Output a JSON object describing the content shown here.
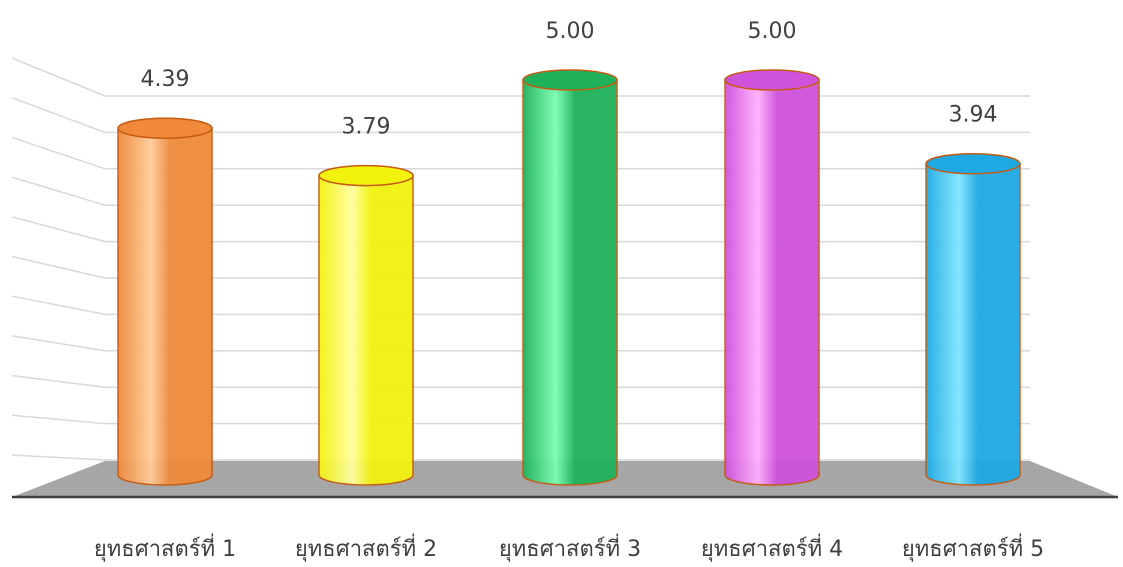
{
  "chart_data": {
    "type": "bar",
    "style": "3d-cylinder",
    "categories": [
      "ยุทธศาสตร์ที่ 1",
      "ยุทธศาสตร์ที่ 2",
      "ยุทธศาสตร์ที่ 3",
      "ยุทธศาสตร์ที่ 4",
      "ยุทธศาสตร์ที่ 5"
    ],
    "values": [
      4.39,
      3.79,
      5.0,
      5.0,
      3.94
    ],
    "value_labels": [
      "4.39",
      "3.79",
      "5.00",
      "5.00",
      "3.94"
    ],
    "title": "",
    "xlabel": "",
    "ylabel": "",
    "ylim": [
      0,
      5
    ],
    "grid": true,
    "legend": "none",
    "floor_color": "#a6a6a6",
    "edge_color": "#c55a11",
    "bar_colors": [
      "#ef8a3b",
      "#f2f20f",
      "#1fb25a",
      "#cf52db",
      "#1ea9e3"
    ],
    "bar_highlight_colors": [
      "#ffcc9a",
      "#ffffa0",
      "#7bffb4",
      "#ffb0ff",
      "#7fe6ff"
    ]
  }
}
